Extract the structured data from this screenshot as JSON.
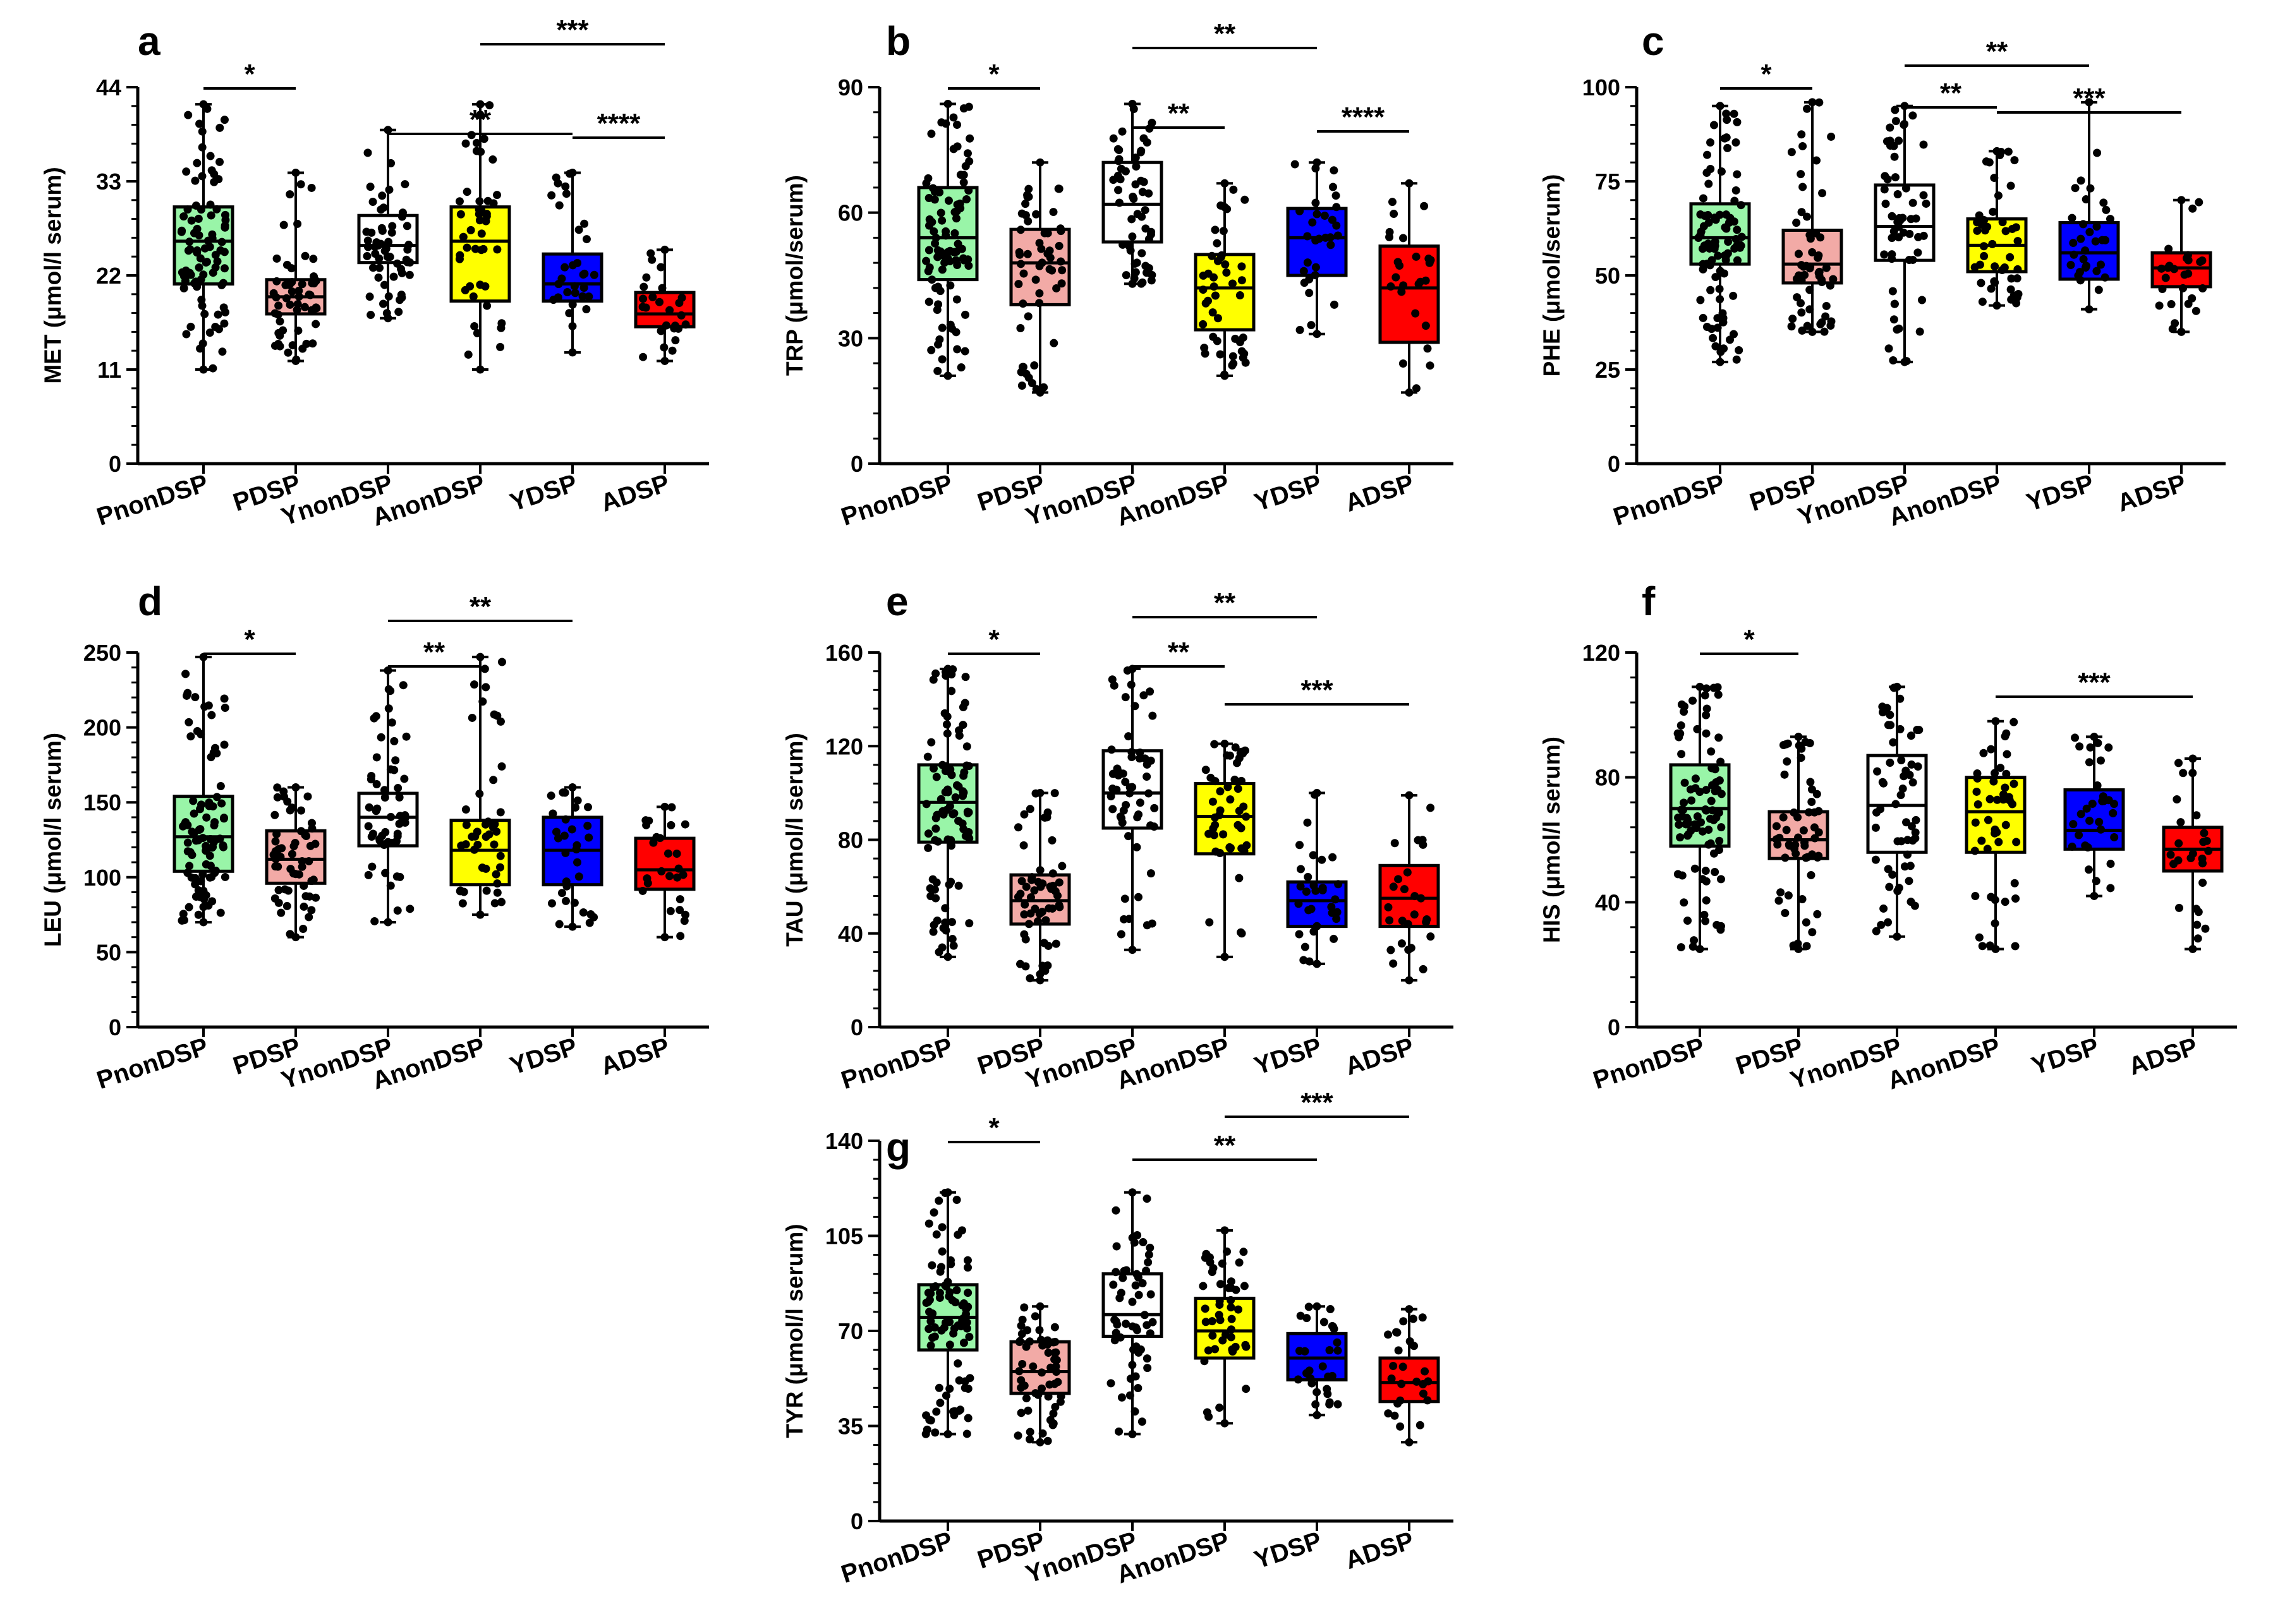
{
  "figure": {
    "colors": {
      "PnonDSP": "#99f5a8",
      "PDSP": "#f2aaa6",
      "YnonDSP": "#ffffff",
      "AnonDSP": "#ffff00",
      "YDSP": "#0000ff",
      "ADSP": "#ff0000",
      "ink": "#000000"
    }
  },
  "chart_data": [
    {
      "panel": "a",
      "type": "box",
      "ylabel": "MET (μmol/l serum)",
      "ylim": [
        0,
        44
      ],
      "yticks": [
        0,
        11,
        22,
        33,
        44
      ],
      "categories": [
        "PnonDSP",
        "PDSP",
        "YnonDSP",
        "AnonDSP",
        "YDSP",
        "ADSP"
      ],
      "series": [
        {
          "name": "PnonDSP",
          "min": 11,
          "q1": 21,
          "median": 26,
          "q3": 30,
          "max": 42,
          "n": 90
        },
        {
          "name": "PDSP",
          "min": 12,
          "q1": 17.5,
          "median": 19.5,
          "q3": 21.5,
          "max": 34,
          "n": 55
        },
        {
          "name": "YnonDSP",
          "min": 17,
          "q1": 23.5,
          "median": 25.5,
          "q3": 29,
          "max": 39,
          "n": 55
        },
        {
          "name": "AnonDSP",
          "min": 11,
          "q1": 19,
          "median": 26,
          "q3": 30,
          "max": 42,
          "n": 45
        },
        {
          "name": "YDSP",
          "min": 13,
          "q1": 19,
          "median": 21,
          "q3": 24.5,
          "max": 34,
          "n": 30
        },
        {
          "name": "ADSP",
          "min": 12,
          "q1": 16,
          "median": 17.5,
          "q3": 20,
          "max": 25,
          "n": 25
        }
      ],
      "significance": [
        {
          "from": 0,
          "to": 1,
          "label": "*"
        },
        {
          "from": 2,
          "to": 4,
          "label": "**"
        },
        {
          "from": 3,
          "to": 5,
          "label": "***"
        },
        {
          "from": 4,
          "to": 5,
          "label": "****"
        }
      ]
    },
    {
      "panel": "b",
      "type": "box",
      "ylabel": "TRP (μmol/serum)",
      "ylim": [
        0,
        90
      ],
      "yticks": [
        0,
        30,
        60,
        90
      ],
      "categories": [
        "PnonDSP",
        "PDSP",
        "YnonDSP",
        "AnonDSP",
        "YDSP",
        "ADSP"
      ],
      "series": [
        {
          "name": "PnonDSP",
          "min": 21,
          "q1": 44,
          "median": 54,
          "q3": 66,
          "max": 86,
          "n": 90
        },
        {
          "name": "PDSP",
          "min": 17,
          "q1": 38,
          "median": 48,
          "q3": 56,
          "max": 72,
          "n": 55
        },
        {
          "name": "YnonDSP",
          "min": 43,
          "q1": 53,
          "median": 62,
          "q3": 72,
          "max": 86,
          "n": 55
        },
        {
          "name": "AnonDSP",
          "min": 21,
          "q1": 32,
          "median": 42,
          "q3": 50,
          "max": 67,
          "n": 45
        },
        {
          "name": "YDSP",
          "min": 31,
          "q1": 45,
          "median": 54,
          "q3": 61,
          "max": 72,
          "n": 30
        },
        {
          "name": "ADSP",
          "min": 17,
          "q1": 29,
          "median": 42,
          "q3": 52,
          "max": 67,
          "n": 25
        }
      ],
      "significance": [
        {
          "from": 0,
          "to": 1,
          "label": "*"
        },
        {
          "from": 2,
          "to": 3,
          "label": "**"
        },
        {
          "from": 2,
          "to": 4,
          "label": "**"
        },
        {
          "from": 4,
          "to": 5,
          "label": "****"
        }
      ]
    },
    {
      "panel": "c",
      "type": "box",
      "ylabel": "PHE (μmol/serum)",
      "ylim": [
        0,
        100
      ],
      "yticks": [
        0,
        25,
        50,
        75,
        100
      ],
      "categories": [
        "PnonDSP",
        "PDSP",
        "YnonDSP",
        "AnonDSP",
        "YDSP",
        "ADSP"
      ],
      "series": [
        {
          "name": "PnonDSP",
          "min": 27,
          "q1": 53,
          "median": 60,
          "q3": 69,
          "max": 95,
          "n": 90
        },
        {
          "name": "PDSP",
          "min": 35,
          "q1": 48,
          "median": 53,
          "q3": 62,
          "max": 96,
          "n": 55
        },
        {
          "name": "YnonDSP",
          "min": 27,
          "q1": 54,
          "median": 63,
          "q3": 74,
          "max": 95,
          "n": 55
        },
        {
          "name": "AnonDSP",
          "min": 42,
          "q1": 51,
          "median": 58,
          "q3": 65,
          "max": 83,
          "n": 45
        },
        {
          "name": "YDSP",
          "min": 41,
          "q1": 49,
          "median": 56,
          "q3": 64,
          "max": 96,
          "n": 30
        },
        {
          "name": "ADSP",
          "min": 35,
          "q1": 47,
          "median": 52,
          "q3": 56,
          "max": 70,
          "n": 25
        }
      ],
      "significance": [
        {
          "from": 0,
          "to": 1,
          "label": "*"
        },
        {
          "from": 2,
          "to": 3,
          "label": "**"
        },
        {
          "from": 2,
          "to": 4,
          "label": "**"
        },
        {
          "from": 3,
          "to": 5,
          "label": "***"
        }
      ]
    },
    {
      "panel": "d",
      "type": "box",
      "ylabel": "LEU (μmol/l serum)",
      "ylim": [
        0,
        250
      ],
      "yticks": [
        0,
        50,
        100,
        150,
        200,
        250
      ],
      "categories": [
        "PnonDSP",
        "PDSP",
        "YnonDSP",
        "AnonDSP",
        "YDSP",
        "ADSP"
      ],
      "series": [
        {
          "name": "PnonDSP",
          "min": 70,
          "q1": 104,
          "median": 127,
          "q3": 154,
          "max": 247,
          "n": 90
        },
        {
          "name": "PDSP",
          "min": 60,
          "q1": 96,
          "median": 112,
          "q3": 131,
          "max": 160,
          "n": 55
        },
        {
          "name": "YnonDSP",
          "min": 70,
          "q1": 121,
          "median": 140,
          "q3": 156,
          "max": 238,
          "n": 55
        },
        {
          "name": "AnonDSP",
          "min": 75,
          "q1": 95,
          "median": 118,
          "q3": 138,
          "max": 247,
          "n": 45
        },
        {
          "name": "YDSP",
          "min": 67,
          "q1": 95,
          "median": 118,
          "q3": 140,
          "max": 160,
          "n": 30
        },
        {
          "name": "ADSP",
          "min": 60,
          "q1": 92,
          "median": 105,
          "q3": 126,
          "max": 147,
          "n": 25
        }
      ],
      "significance": [
        {
          "from": 0,
          "to": 1,
          "label": "*"
        },
        {
          "from": 2,
          "to": 3,
          "label": "**"
        },
        {
          "from": 2,
          "to": 4,
          "label": "**"
        }
      ]
    },
    {
      "panel": "e",
      "type": "box",
      "ylabel": "TAU (μmol/l serum)",
      "ylim": [
        0,
        160
      ],
      "yticks": [
        0,
        40,
        80,
        120,
        160
      ],
      "categories": [
        "PnonDSP",
        "PDSP",
        "YnonDSP",
        "AnonDSP",
        "YDSP",
        "ADSP"
      ],
      "series": [
        {
          "name": "PnonDSP",
          "min": 30,
          "q1": 79,
          "median": 96,
          "q3": 112,
          "max": 153,
          "n": 90
        },
        {
          "name": "PDSP",
          "min": 20,
          "q1": 44,
          "median": 54,
          "q3": 65,
          "max": 100,
          "n": 55
        },
        {
          "name": "YnonDSP",
          "min": 33,
          "q1": 85,
          "median": 100,
          "q3": 118,
          "max": 153,
          "n": 55
        },
        {
          "name": "AnonDSP",
          "min": 30,
          "q1": 74,
          "median": 90,
          "q3": 104,
          "max": 121,
          "n": 45
        },
        {
          "name": "YDSP",
          "min": 27,
          "q1": 43,
          "median": 54,
          "q3": 62,
          "max": 100,
          "n": 30
        },
        {
          "name": "ADSP",
          "min": 20,
          "q1": 43,
          "median": 55,
          "q3": 69,
          "max": 99,
          "n": 25
        }
      ],
      "significance": [
        {
          "from": 0,
          "to": 1,
          "label": "*"
        },
        {
          "from": 2,
          "to": 3,
          "label": "**"
        },
        {
          "from": 2,
          "to": 4,
          "label": "**"
        },
        {
          "from": 3,
          "to": 5,
          "label": "***"
        }
      ]
    },
    {
      "panel": "f",
      "type": "box",
      "ylabel": "HIS (μmol/l serum)",
      "ylim": [
        0,
        120
      ],
      "yticks": [
        0,
        40,
        80,
        120
      ],
      "categories": [
        "PnonDSP",
        "PDSP",
        "YnonDSP",
        "AnonDSP",
        "YDSP",
        "ADSP"
      ],
      "series": [
        {
          "name": "PnonDSP",
          "min": 25,
          "q1": 58,
          "median": 70,
          "q3": 84,
          "max": 109,
          "n": 90
        },
        {
          "name": "PDSP",
          "min": 25,
          "q1": 54,
          "median": 60,
          "q3": 69,
          "max": 93,
          "n": 55
        },
        {
          "name": "YnonDSP",
          "min": 29,
          "q1": 56,
          "median": 71,
          "q3": 87,
          "max": 109,
          "n": 55
        },
        {
          "name": "AnonDSP",
          "min": 25,
          "q1": 56,
          "median": 69,
          "q3": 80,
          "max": 98,
          "n": 45
        },
        {
          "name": "YDSP",
          "min": 42,
          "q1": 57,
          "median": 63,
          "q3": 76,
          "max": 93,
          "n": 30
        },
        {
          "name": "ADSP",
          "min": 25,
          "q1": 50,
          "median": 57,
          "q3": 64,
          "max": 86,
          "n": 25
        }
      ],
      "significance": [
        {
          "from": 0,
          "to": 1,
          "label": "*"
        },
        {
          "from": 3,
          "to": 5,
          "label": "***"
        }
      ]
    },
    {
      "panel": "g",
      "type": "box",
      "ylabel": "TYR (μmol/l serum)",
      "ylim": [
        0,
        140
      ],
      "yticks": [
        0,
        35,
        70,
        105,
        140
      ],
      "categories": [
        "PnonDSP",
        "PDSP",
        "YnonDSP",
        "AnonDSP",
        "YDSP",
        "ADSP"
      ],
      "series": [
        {
          "name": "PnonDSP",
          "min": 32,
          "q1": 63,
          "median": 75,
          "q3": 87,
          "max": 121,
          "n": 90
        },
        {
          "name": "PDSP",
          "min": 29,
          "q1": 47,
          "median": 55,
          "q3": 66,
          "max": 79,
          "n": 55
        },
        {
          "name": "YnonDSP",
          "min": 32,
          "q1": 68,
          "median": 76,
          "q3": 91,
          "max": 121,
          "n": 55
        },
        {
          "name": "AnonDSP",
          "min": 36,
          "q1": 60,
          "median": 70,
          "q3": 82,
          "max": 107,
          "n": 45
        },
        {
          "name": "YDSP",
          "min": 39,
          "q1": 52,
          "median": 60,
          "q3": 69,
          "max": 79,
          "n": 30
        },
        {
          "name": "ADSP",
          "min": 29,
          "q1": 44,
          "median": 51,
          "q3": 60,
          "max": 78,
          "n": 25
        }
      ],
      "significance": [
        {
          "from": 0,
          "to": 1,
          "label": "*"
        },
        {
          "from": 2,
          "to": 4,
          "label": "**"
        },
        {
          "from": 3,
          "to": 5,
          "label": "***"
        }
      ]
    }
  ]
}
